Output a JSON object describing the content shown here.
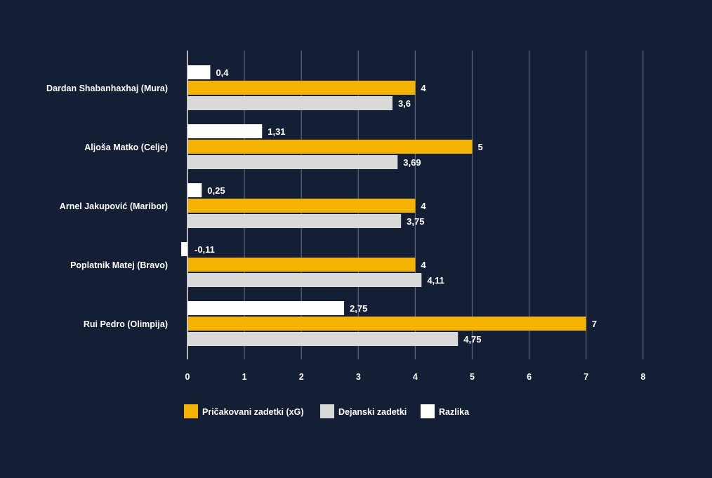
{
  "chart_data": {
    "type": "bar",
    "orientation": "horizontal",
    "categories": [
      "Dardan Shabanhaxhaj (Mura)",
      "Aljoša Matko (Celje)",
      "Arnel Jakupović (Maribor)",
      "Poplatnik Matej (Bravo)",
      "Rui Pedro (Olimpija)"
    ],
    "series": [
      {
        "name": "Razlika",
        "color": "#ffffff",
        "values": [
          0.4,
          1.31,
          0.25,
          -0.11,
          2.75
        ],
        "labels": [
          "0,4",
          "1,31",
          "0,25",
          "-0,11",
          "2,75"
        ]
      },
      {
        "name": "Pričakovani zadetki (xG)",
        "color": "#f5b301",
        "values": [
          4,
          5,
          4,
          4,
          7
        ],
        "labels": [
          "4",
          "5",
          "4",
          "4",
          "7"
        ]
      },
      {
        "name": "Dejanski zadetki",
        "color": "#d9d9d9",
        "values": [
          3.6,
          3.69,
          3.75,
          4.11,
          4.75
        ],
        "labels": [
          "3,6",
          "3,69",
          "3,75",
          "4,11",
          "4,75"
        ]
      }
    ],
    "xlim": [
      0,
      8
    ],
    "xticks": [
      "0",
      "1",
      "2",
      "3",
      "4",
      "5",
      "6",
      "7",
      "8"
    ],
    "grid": true,
    "legend_position": "bottom-left",
    "legend_order": [
      "Pričakovani zadetki (xG)",
      "Dejanski zadetki",
      "Razlika"
    ],
    "background": "#141e35",
    "gridline_color": "#5d6678"
  }
}
